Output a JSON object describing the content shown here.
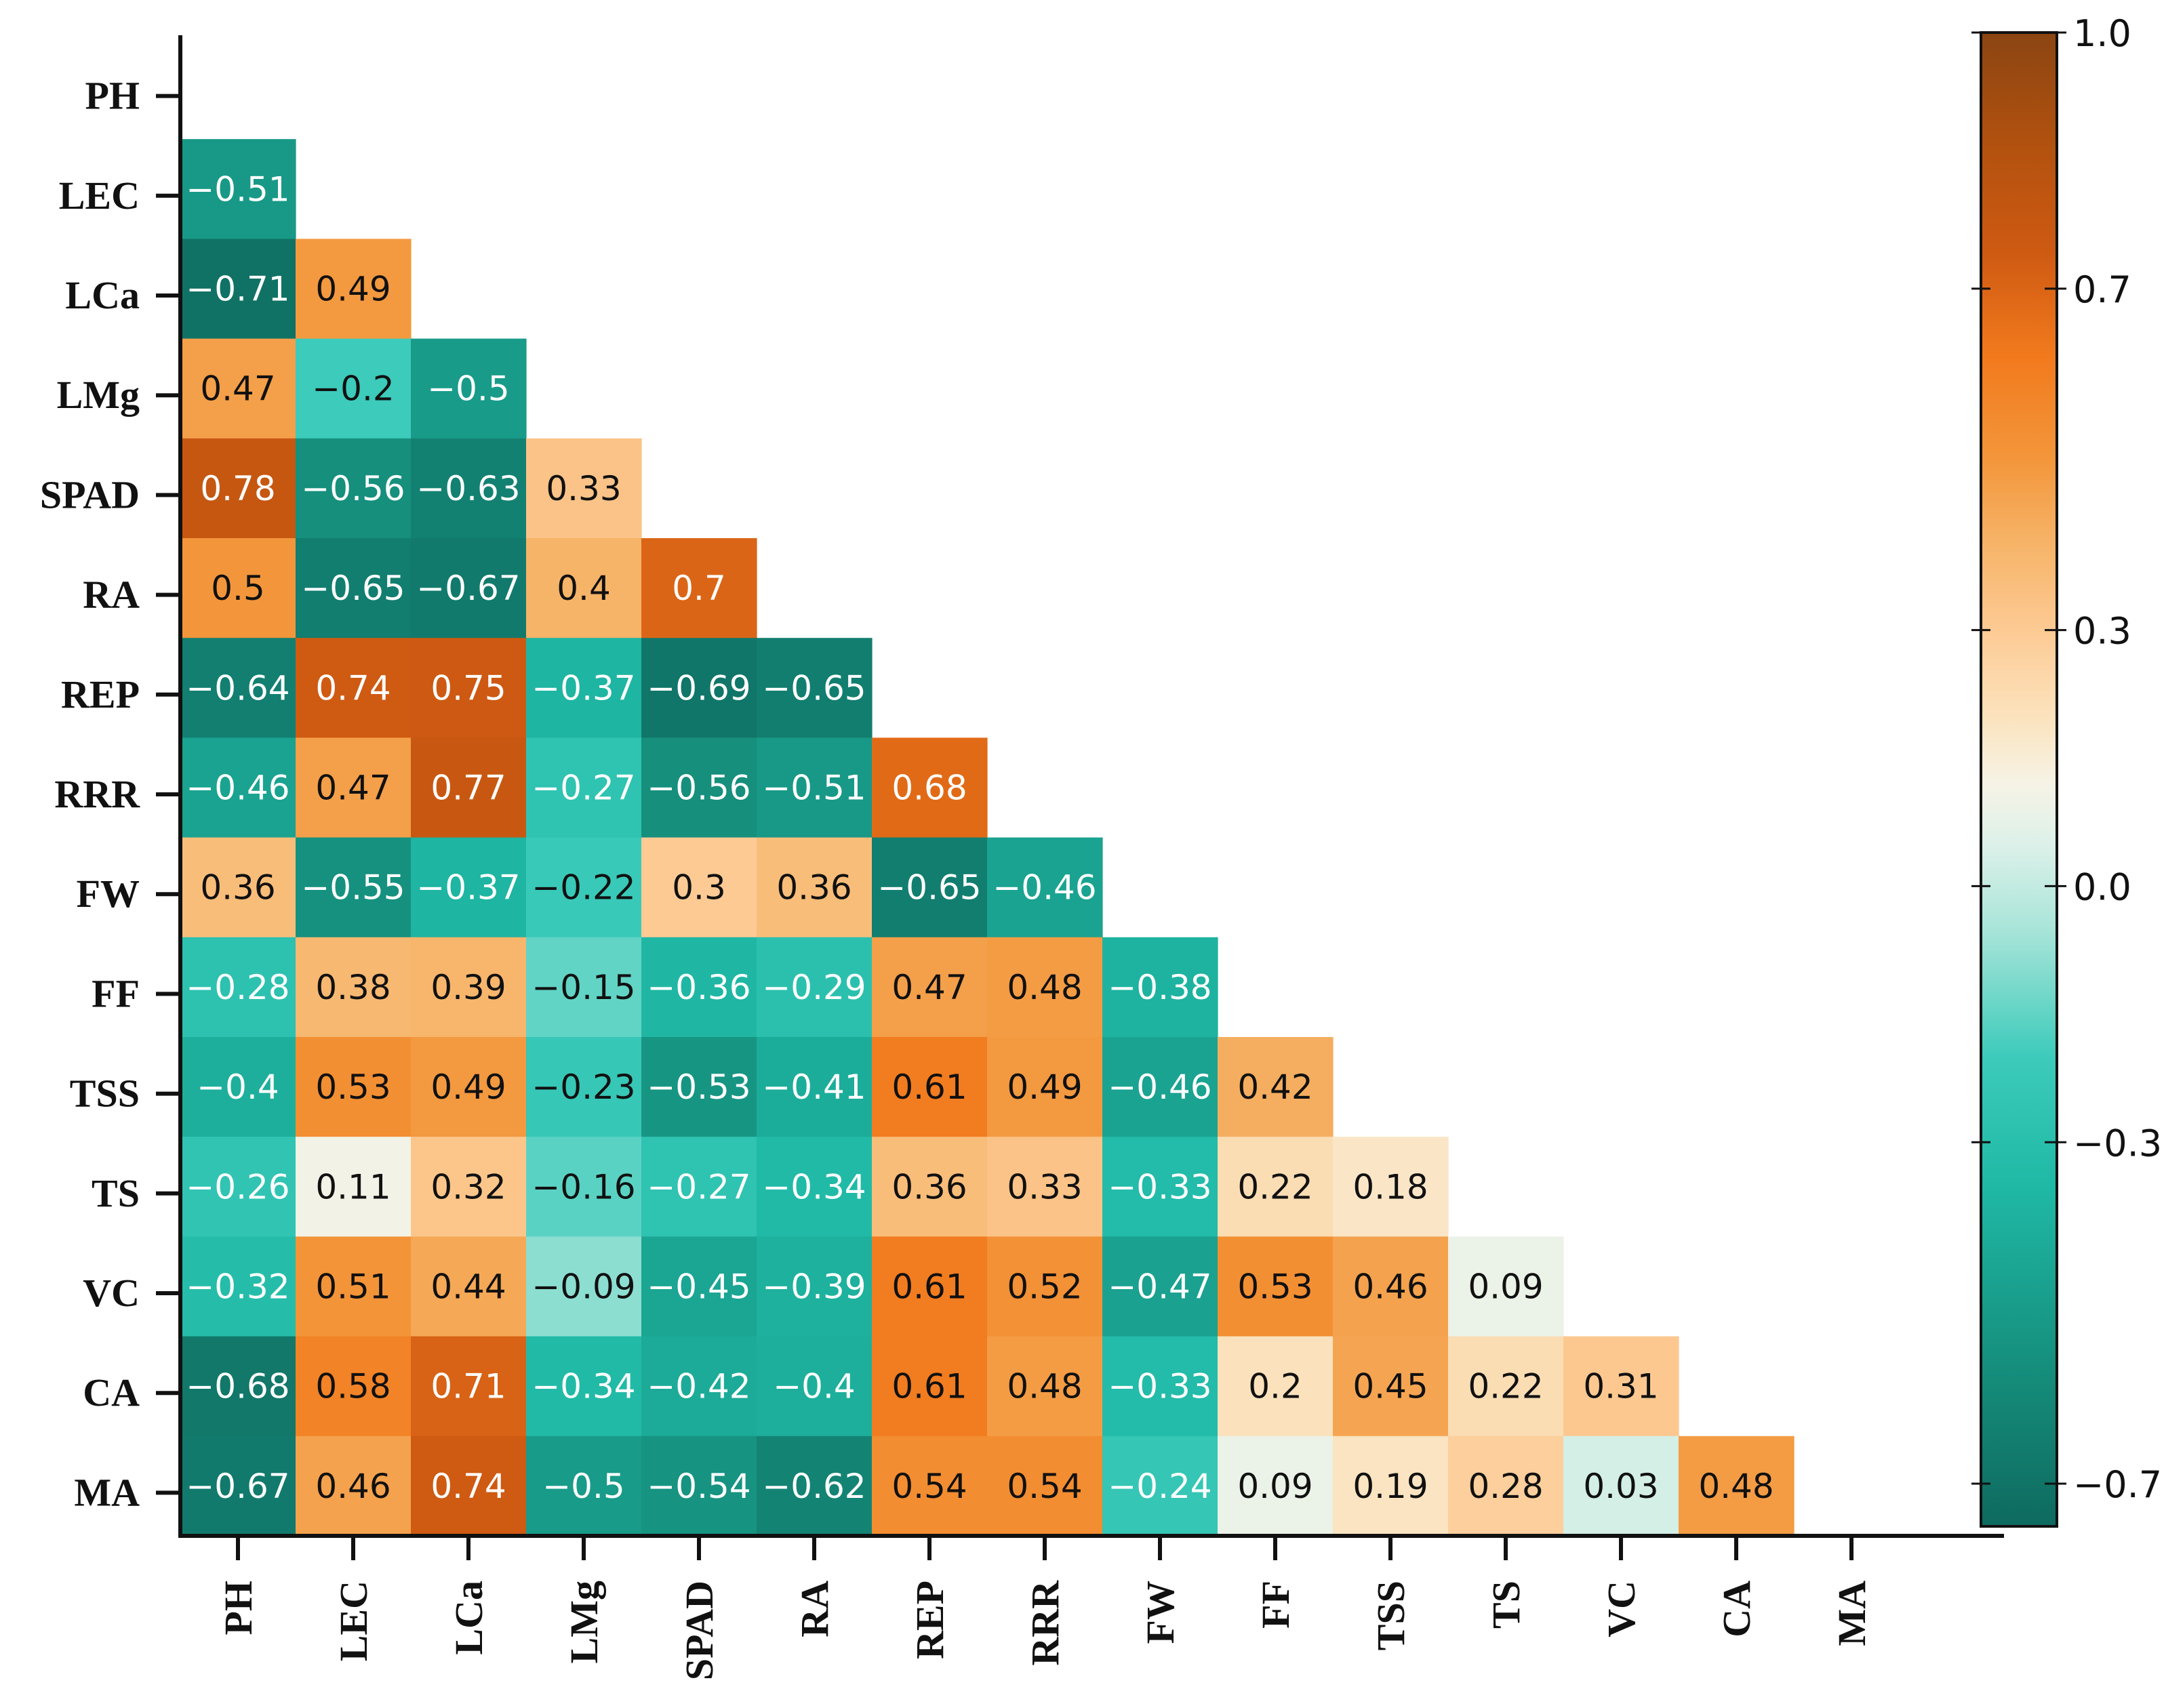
{
  "chart_data": {
    "type": "heatmap",
    "title": "",
    "variables": [
      "PH",
      "LEC",
      "LCa",
      "LMg",
      "SPAD",
      "RA",
      "REP",
      "RRR",
      "FW",
      "FF",
      "TSS",
      "TS",
      "VC",
      "CA",
      "MA"
    ],
    "cells": [
      {
        "row": "LEC",
        "col": "PH",
        "value": -0.51,
        "label": "−0.51"
      },
      {
        "row": "LCa",
        "col": "PH",
        "value": -0.71,
        "label": "−0.71"
      },
      {
        "row": "LCa",
        "col": "LEC",
        "value": 0.49,
        "label": "0.49"
      },
      {
        "row": "LMg",
        "col": "PH",
        "value": 0.47,
        "label": "0.47"
      },
      {
        "row": "LMg",
        "col": "LEC",
        "value": -0.2,
        "label": "−0.2"
      },
      {
        "row": "LMg",
        "col": "LCa",
        "value": -0.5,
        "label": "−0.5"
      },
      {
        "row": "SPAD",
        "col": "PH",
        "value": 0.78,
        "label": "0.78"
      },
      {
        "row": "SPAD",
        "col": "LEC",
        "value": -0.56,
        "label": "−0.56"
      },
      {
        "row": "SPAD",
        "col": "LCa",
        "value": -0.63,
        "label": "−0.63"
      },
      {
        "row": "SPAD",
        "col": "LMg",
        "value": 0.33,
        "label": "0.33"
      },
      {
        "row": "RA",
        "col": "PH",
        "value": 0.5,
        "label": "0.5"
      },
      {
        "row": "RA",
        "col": "LEC",
        "value": -0.65,
        "label": "−0.65"
      },
      {
        "row": "RA",
        "col": "LCa",
        "value": -0.67,
        "label": "−0.67"
      },
      {
        "row": "RA",
        "col": "LMg",
        "value": 0.4,
        "label": "0.4"
      },
      {
        "row": "RA",
        "col": "SPAD",
        "value": 0.7,
        "label": "0.7"
      },
      {
        "row": "REP",
        "col": "PH",
        "value": -0.64,
        "label": "−0.64"
      },
      {
        "row": "REP",
        "col": "LEC",
        "value": 0.74,
        "label": "0.74"
      },
      {
        "row": "REP",
        "col": "LCa",
        "value": 0.75,
        "label": "0.75"
      },
      {
        "row": "REP",
        "col": "LMg",
        "value": -0.37,
        "label": "−0.37"
      },
      {
        "row": "REP",
        "col": "SPAD",
        "value": -0.69,
        "label": "−0.69"
      },
      {
        "row": "REP",
        "col": "RA",
        "value": -0.65,
        "label": "−0.65"
      },
      {
        "row": "RRR",
        "col": "PH",
        "value": -0.46,
        "label": "−0.46"
      },
      {
        "row": "RRR",
        "col": "LEC",
        "value": 0.47,
        "label": "0.47"
      },
      {
        "row": "RRR",
        "col": "LCa",
        "value": 0.77,
        "label": "0.77"
      },
      {
        "row": "RRR",
        "col": "LMg",
        "value": -0.27,
        "label": "−0.27"
      },
      {
        "row": "RRR",
        "col": "SPAD",
        "value": -0.56,
        "label": "−0.56"
      },
      {
        "row": "RRR",
        "col": "RA",
        "value": -0.51,
        "label": "−0.51"
      },
      {
        "row": "RRR",
        "col": "REP",
        "value": 0.68,
        "label": "0.68"
      },
      {
        "row": "FW",
        "col": "PH",
        "value": 0.36,
        "label": "0.36"
      },
      {
        "row": "FW",
        "col": "LEC",
        "value": -0.55,
        "label": "−0.55"
      },
      {
        "row": "FW",
        "col": "LCa",
        "value": -0.37,
        "label": "−0.37"
      },
      {
        "row": "FW",
        "col": "LMg",
        "value": -0.22,
        "label": "−0.22"
      },
      {
        "row": "FW",
        "col": "SPAD",
        "value": 0.3,
        "label": "0.3"
      },
      {
        "row": "FW",
        "col": "RA",
        "value": 0.36,
        "label": "0.36"
      },
      {
        "row": "FW",
        "col": "REP",
        "value": -0.65,
        "label": "−0.65"
      },
      {
        "row": "FW",
        "col": "RRR",
        "value": -0.46,
        "label": "−0.46"
      },
      {
        "row": "FF",
        "col": "PH",
        "value": -0.28,
        "label": "−0.28"
      },
      {
        "row": "FF",
        "col": "LEC",
        "value": 0.38,
        "label": "0.38"
      },
      {
        "row": "FF",
        "col": "LCa",
        "value": 0.39,
        "label": "0.39"
      },
      {
        "row": "FF",
        "col": "LMg",
        "value": -0.15,
        "label": "−0.15"
      },
      {
        "row": "FF",
        "col": "SPAD",
        "value": -0.36,
        "label": "−0.36"
      },
      {
        "row": "FF",
        "col": "RA",
        "value": -0.29,
        "label": "−0.29"
      },
      {
        "row": "FF",
        "col": "REP",
        "value": 0.47,
        "label": "0.47"
      },
      {
        "row": "FF",
        "col": "RRR",
        "value": 0.48,
        "label": "0.48"
      },
      {
        "row": "FF",
        "col": "FW",
        "value": -0.38,
        "label": "−0.38"
      },
      {
        "row": "TSS",
        "col": "PH",
        "value": -0.4,
        "label": "−0.4"
      },
      {
        "row": "TSS",
        "col": "LEC",
        "value": 0.53,
        "label": "0.53"
      },
      {
        "row": "TSS",
        "col": "LCa",
        "value": 0.49,
        "label": "0.49"
      },
      {
        "row": "TSS",
        "col": "LMg",
        "value": -0.23,
        "label": "−0.23"
      },
      {
        "row": "TSS",
        "col": "SPAD",
        "value": -0.53,
        "label": "−0.53"
      },
      {
        "row": "TSS",
        "col": "RA",
        "value": -0.41,
        "label": "−0.41"
      },
      {
        "row": "TSS",
        "col": "REP",
        "value": 0.61,
        "label": "0.61"
      },
      {
        "row": "TSS",
        "col": "RRR",
        "value": 0.49,
        "label": "0.49"
      },
      {
        "row": "TSS",
        "col": "FW",
        "value": -0.46,
        "label": "−0.46"
      },
      {
        "row": "TSS",
        "col": "FF",
        "value": 0.42,
        "label": "0.42"
      },
      {
        "row": "TS",
        "col": "PH",
        "value": -0.26,
        "label": "−0.26"
      },
      {
        "row": "TS",
        "col": "LEC",
        "value": 0.11,
        "label": "0.11"
      },
      {
        "row": "TS",
        "col": "LCa",
        "value": 0.32,
        "label": "0.32"
      },
      {
        "row": "TS",
        "col": "LMg",
        "value": -0.16,
        "label": "−0.16"
      },
      {
        "row": "TS",
        "col": "SPAD",
        "value": -0.27,
        "label": "−0.27"
      },
      {
        "row": "TS",
        "col": "RA",
        "value": -0.34,
        "label": "−0.34"
      },
      {
        "row": "TS",
        "col": "REP",
        "value": 0.36,
        "label": "0.36"
      },
      {
        "row": "TS",
        "col": "RRR",
        "value": 0.33,
        "label": "0.33"
      },
      {
        "row": "TS",
        "col": "FW",
        "value": -0.33,
        "label": "−0.33"
      },
      {
        "row": "TS",
        "col": "FF",
        "value": 0.22,
        "label": "0.22"
      },
      {
        "row": "TS",
        "col": "TSS",
        "value": 0.18,
        "label": "0.18"
      },
      {
        "row": "VC",
        "col": "PH",
        "value": -0.32,
        "label": "−0.32"
      },
      {
        "row": "VC",
        "col": "LEC",
        "value": 0.51,
        "label": "0.51"
      },
      {
        "row": "VC",
        "col": "LCa",
        "value": 0.44,
        "label": "0.44"
      },
      {
        "row": "VC",
        "col": "LMg",
        "value": -0.09,
        "label": "−0.09"
      },
      {
        "row": "VC",
        "col": "SPAD",
        "value": -0.45,
        "label": "−0.45"
      },
      {
        "row": "VC",
        "col": "RA",
        "value": -0.39,
        "label": "−0.39"
      },
      {
        "row": "VC",
        "col": "REP",
        "value": 0.61,
        "label": "0.61"
      },
      {
        "row": "VC",
        "col": "RRR",
        "value": 0.52,
        "label": "0.52"
      },
      {
        "row": "VC",
        "col": "FW",
        "value": -0.47,
        "label": "−0.47"
      },
      {
        "row": "VC",
        "col": "FF",
        "value": 0.53,
        "label": "0.53"
      },
      {
        "row": "VC",
        "col": "TSS",
        "value": 0.46,
        "label": "0.46"
      },
      {
        "row": "VC",
        "col": "TS",
        "value": 0.09,
        "label": "0.09"
      },
      {
        "row": "CA",
        "col": "PH",
        "value": -0.68,
        "label": "−0.68"
      },
      {
        "row": "CA",
        "col": "LEC",
        "value": 0.58,
        "label": "0.58"
      },
      {
        "row": "CA",
        "col": "LCa",
        "value": 0.71,
        "label": "0.71"
      },
      {
        "row": "CA",
        "col": "LMg",
        "value": -0.34,
        "label": "−0.34"
      },
      {
        "row": "CA",
        "col": "SPAD",
        "value": -0.42,
        "label": "−0.42"
      },
      {
        "row": "CA",
        "col": "RA",
        "value": -0.4,
        "label": "−0.4"
      },
      {
        "row": "CA",
        "col": "REP",
        "value": 0.61,
        "label": "0.61"
      },
      {
        "row": "CA",
        "col": "RRR",
        "value": 0.48,
        "label": "0.48"
      },
      {
        "row": "CA",
        "col": "FW",
        "value": -0.33,
        "label": "−0.33"
      },
      {
        "row": "CA",
        "col": "FF",
        "value": 0.2,
        "label": "0.2"
      },
      {
        "row": "CA",
        "col": "TSS",
        "value": 0.45,
        "label": "0.45"
      },
      {
        "row": "CA",
        "col": "TS",
        "value": 0.22,
        "label": "0.22"
      },
      {
        "row": "CA",
        "col": "VC",
        "value": 0.31,
        "label": "0.31"
      },
      {
        "row": "MA",
        "col": "PH",
        "value": -0.67,
        "label": "−0.67"
      },
      {
        "row": "MA",
        "col": "LEC",
        "value": 0.46,
        "label": "0.46"
      },
      {
        "row": "MA",
        "col": "LCa",
        "value": 0.74,
        "label": "0.74"
      },
      {
        "row": "MA",
        "col": "LMg",
        "value": -0.5,
        "label": "−0.5"
      },
      {
        "row": "MA",
        "col": "SPAD",
        "value": -0.54,
        "label": "−0.54"
      },
      {
        "row": "MA",
        "col": "RA",
        "value": -0.62,
        "label": "−0.62"
      },
      {
        "row": "MA",
        "col": "REP",
        "value": 0.54,
        "label": "0.54"
      },
      {
        "row": "MA",
        "col": "RRR",
        "value": 0.54,
        "label": "0.54"
      },
      {
        "row": "MA",
        "col": "FW",
        "value": -0.24,
        "label": "−0.24"
      },
      {
        "row": "MA",
        "col": "FF",
        "value": 0.09,
        "label": "0.09"
      },
      {
        "row": "MA",
        "col": "TSS",
        "value": 0.19,
        "label": "0.19"
      },
      {
        "row": "MA",
        "col": "TS",
        "value": 0.28,
        "label": "0.28"
      },
      {
        "row": "MA",
        "col": "VC",
        "value": 0.03,
        "label": "0.03"
      },
      {
        "row": "MA",
        "col": "CA",
        "value": 0.48,
        "label": "0.48"
      }
    ],
    "colorbar": {
      "range": [
        -0.75,
        1.0
      ],
      "ticks": [
        {
          "value": 1.0,
          "label": "1.0"
        },
        {
          "value": 0.7,
          "label": "0.7"
        },
        {
          "value": 0.3,
          "label": "0.3"
        },
        {
          "value": 0.0,
          "label": "0.0"
        },
        {
          "value": -0.3,
          "label": "−0.3"
        },
        {
          "value": -0.7,
          "label": "−0.7"
        }
      ]
    },
    "colors": {
      "stops": [
        {
          "v": -0.75,
          "c": "#0e6a5f"
        },
        {
          "v": -0.55,
          "c": "#16917f"
        },
        {
          "v": -0.35,
          "c": "#1fb9a6"
        },
        {
          "v": -0.2,
          "c": "#3dcbbb"
        },
        {
          "v": -0.05,
          "c": "#a9e5d9"
        },
        {
          "v": 0.05,
          "c": "#ddf1e9"
        },
        {
          "v": 0.12,
          "c": "#f6f3e6"
        },
        {
          "v": 0.2,
          "c": "#fbe2bc"
        },
        {
          "v": 0.3,
          "c": "#fdca94"
        },
        {
          "v": 0.4,
          "c": "#f6b468"
        },
        {
          "v": 0.5,
          "c": "#f3963b"
        },
        {
          "v": 0.62,
          "c": "#f27a1d"
        },
        {
          "v": 0.74,
          "c": "#cf5a12"
        },
        {
          "v": 0.86,
          "c": "#b4520f"
        },
        {
          "v": 1.0,
          "c": "#8b4512"
        }
      ],
      "axis": "#111111",
      "text_dark": "#111111",
      "text_light": "#ffffff"
    }
  }
}
